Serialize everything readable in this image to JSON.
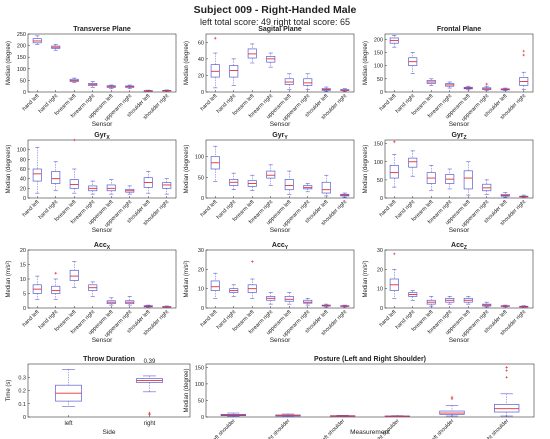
{
  "figure": {
    "title": "Subject 009 - Right-Handed Male",
    "subtitle": "left total score: 49  right total score: 65",
    "colors": {
      "box": "#5b5bd6",
      "median": "#e03030",
      "outlier": "#e03030",
      "axis": "#333333"
    }
  },
  "chart_data": [
    {
      "type": "box",
      "title": "Transverse Plane",
      "xlabel": "Sensor",
      "ylabel": "Median (degree)",
      "ylim": [
        0,
        250
      ],
      "yticks": [
        0,
        50,
        100,
        150,
        200,
        250
      ],
      "categories": [
        "hand left",
        "hand right",
        "forearm left",
        "forearm right",
        "upperarm left",
        "upperarm right",
        "shoulder left",
        "shoulder right"
      ],
      "boxes": [
        {
          "min": 205,
          "q1": 212,
          "median": 220,
          "q3": 230,
          "max": 242,
          "outliers": []
        },
        {
          "min": 180,
          "q1": 188,
          "median": 193,
          "q3": 198,
          "max": 205,
          "outliers": []
        },
        {
          "min": 40,
          "q1": 45,
          "median": 50,
          "q3": 55,
          "max": 60,
          "outliers": []
        },
        {
          "min": 20,
          "q1": 28,
          "median": 33,
          "q3": 37,
          "max": 45,
          "outliers": []
        },
        {
          "min": 15,
          "q1": 20,
          "median": 23,
          "q3": 27,
          "max": 30,
          "outliers": []
        },
        {
          "min": 15,
          "q1": 20,
          "median": 23,
          "q3": 26,
          "max": 30,
          "outliers": []
        },
        {
          "min": 3,
          "q1": 4,
          "median": 5,
          "q3": 6,
          "max": 8,
          "outliers": []
        },
        {
          "min": 4,
          "q1": 5,
          "median": 6,
          "q3": 7,
          "max": 9,
          "outliers": []
        }
      ]
    },
    {
      "type": "box",
      "title": "Sagital Plane",
      "xlabel": "Sensor",
      "ylabel": "Median (degree)",
      "ylim": [
        0,
        70
      ],
      "yticks": [
        0,
        20,
        40,
        60
      ],
      "categories": [
        "hand left",
        "hand right",
        "forearm left",
        "forearm right",
        "upperarm left",
        "upperarm right",
        "shoulder left",
        "shoulder right"
      ],
      "boxes": [
        {
          "min": 5,
          "q1": 18,
          "median": 25,
          "q3": 33,
          "max": 47,
          "outliers": [
            65
          ]
        },
        {
          "min": 8,
          "q1": 18,
          "median": 26,
          "q3": 32,
          "max": 40,
          "outliers": []
        },
        {
          "min": 35,
          "q1": 41,
          "median": 46,
          "q3": 52,
          "max": 58,
          "outliers": []
        },
        {
          "min": 30,
          "q1": 36,
          "median": 40,
          "q3": 43,
          "max": 47,
          "outliers": []
        },
        {
          "min": 3,
          "q1": 9,
          "median": 12,
          "q3": 16,
          "max": 22,
          "outliers": []
        },
        {
          "min": 3,
          "q1": 8,
          "median": 11,
          "q3": 16,
          "max": 22,
          "outliers": []
        },
        {
          "min": 1,
          "q1": 2,
          "median": 3,
          "q3": 4,
          "max": 6,
          "outliers": []
        },
        {
          "min": 1,
          "q1": 2,
          "median": 2,
          "q3": 3,
          "max": 4,
          "outliers": []
        }
      ]
    },
    {
      "type": "box",
      "title": "Frontal Plane",
      "xlabel": "Sensor",
      "ylabel": "Median (degree)",
      "ylim": [
        0,
        220
      ],
      "yticks": [
        0,
        50,
        100,
        150,
        200
      ],
      "categories": [
        "hand left",
        "hand right",
        "forearm left",
        "forearm right",
        "upperarm left",
        "upperarm right",
        "shoulder left",
        "shoulder right"
      ],
      "boxes": [
        {
          "min": 170,
          "q1": 185,
          "median": 195,
          "q3": 205,
          "max": 215,
          "outliers": []
        },
        {
          "min": 70,
          "q1": 100,
          "median": 115,
          "q3": 130,
          "max": 150,
          "outliers": []
        },
        {
          "min": 25,
          "q1": 32,
          "median": 38,
          "q3": 44,
          "max": 50,
          "outliers": []
        },
        {
          "min": 15,
          "q1": 22,
          "median": 27,
          "q3": 32,
          "max": 38,
          "outliers": []
        },
        {
          "min": 8,
          "q1": 12,
          "median": 15,
          "q3": 18,
          "max": 22,
          "outliers": []
        },
        {
          "min": 5,
          "q1": 9,
          "median": 12,
          "q3": 16,
          "max": 22,
          "outliers": [
            30
          ]
        },
        {
          "min": 5,
          "q1": 8,
          "median": 10,
          "q3": 12,
          "max": 15,
          "outliers": []
        },
        {
          "min": 10,
          "q1": 25,
          "median": 40,
          "q3": 55,
          "max": 75,
          "outliers": [
            155,
            140
          ]
        }
      ]
    },
    {
      "type": "box",
      "title": "Gyr",
      "title_sub": "X",
      "xlabel": "Sensor",
      "ylabel": "Median (degree/s)",
      "ylim": [
        0,
        120
      ],
      "yticks": [
        0,
        20,
        40,
        60,
        80,
        100
      ],
      "categories": [
        "hand left",
        "hand right",
        "forearm left",
        "forearm right",
        "upperarm left",
        "upperarm right",
        "shoulder left",
        "shoulder right"
      ],
      "boxes": [
        {
          "min": 10,
          "q1": 35,
          "median": 50,
          "q3": 60,
          "max": 105,
          "outliers": []
        },
        {
          "min": 15,
          "q1": 30,
          "median": 40,
          "q3": 55,
          "max": 75,
          "outliers": []
        },
        {
          "min": 10,
          "q1": 20,
          "median": 28,
          "q3": 38,
          "max": 60,
          "outliers": [
            120
          ]
        },
        {
          "min": 8,
          "q1": 15,
          "median": 20,
          "q3": 25,
          "max": 35,
          "outliers": []
        },
        {
          "min": 8,
          "q1": 15,
          "median": 20,
          "q3": 27,
          "max": 38,
          "outliers": []
        },
        {
          "min": 8,
          "q1": 12,
          "median": 15,
          "q3": 18,
          "max": 25,
          "outliers": []
        },
        {
          "min": 10,
          "q1": 22,
          "median": 32,
          "q3": 42,
          "max": 55,
          "outliers": []
        },
        {
          "min": 8,
          "q1": 20,
          "median": 27,
          "q3": 32,
          "max": 40,
          "outliers": []
        }
      ]
    },
    {
      "type": "box",
      "title": "Gyr",
      "title_sub": "Y",
      "xlabel": "Sensor",
      "ylabel": "Median (degree/s)",
      "ylim": [
        0,
        140
      ],
      "yticks": [
        0,
        50,
        100
      ],
      "categories": [
        "hand left",
        "hand right",
        "forearm left",
        "forearm right",
        "upperarm left",
        "upperarm right",
        "shoulder left",
        "shoulder right"
      ],
      "boxes": [
        {
          "min": 40,
          "q1": 70,
          "median": 85,
          "q3": 100,
          "max": 125,
          "outliers": []
        },
        {
          "min": 20,
          "q1": 30,
          "median": 38,
          "q3": 45,
          "max": 60,
          "outliers": []
        },
        {
          "min": 18,
          "q1": 28,
          "median": 35,
          "q3": 42,
          "max": 55,
          "outliers": []
        },
        {
          "min": 30,
          "q1": 48,
          "median": 55,
          "q3": 65,
          "max": 80,
          "outliers": []
        },
        {
          "min": 8,
          "q1": 20,
          "median": 30,
          "q3": 45,
          "max": 65,
          "outliers": []
        },
        {
          "min": 15,
          "q1": 22,
          "median": 25,
          "q3": 30,
          "max": 35,
          "outliers": []
        },
        {
          "min": 5,
          "q1": 12,
          "median": 20,
          "q3": 38,
          "max": 55,
          "outliers": []
        },
        {
          "min": 2,
          "q1": 5,
          "median": 7,
          "q3": 9,
          "max": 12,
          "outliers": []
        }
      ]
    },
    {
      "type": "box",
      "title": "Gyr",
      "title_sub": "Z",
      "xlabel": "Sensor",
      "ylabel": "Median (degree/s)",
      "ylim": [
        0,
        160
      ],
      "yticks": [
        0,
        50,
        100,
        150
      ],
      "categories": [
        "hand left",
        "hand right",
        "forearm left",
        "forearm right",
        "upperarm left",
        "upperarm right",
        "shoulder left",
        "shoulder right"
      ],
      "boxes": [
        {
          "min": 30,
          "q1": 55,
          "median": 70,
          "q3": 90,
          "max": 120,
          "outliers": [
            155
          ]
        },
        {
          "min": 60,
          "q1": 85,
          "median": 100,
          "q3": 110,
          "max": 130,
          "outliers": []
        },
        {
          "min": 20,
          "q1": 40,
          "median": 55,
          "q3": 70,
          "max": 90,
          "outliers": []
        },
        {
          "min": 25,
          "q1": 40,
          "median": 52,
          "q3": 65,
          "max": 80,
          "outliers": []
        },
        {
          "min": 8,
          "q1": 25,
          "median": 55,
          "q3": 75,
          "max": 100,
          "outliers": []
        },
        {
          "min": 10,
          "q1": 20,
          "median": 28,
          "q3": 38,
          "max": 50,
          "outliers": []
        },
        {
          "min": 2,
          "q1": 5,
          "median": 7,
          "q3": 10,
          "max": 15,
          "outliers": []
        },
        {
          "min": 2,
          "q1": 3,
          "median": 4,
          "q3": 5,
          "max": 8,
          "outliers": []
        }
      ]
    },
    {
      "type": "box",
      "title": "Acc",
      "title_sub": "X",
      "xlabel": "Sensor",
      "ylabel": "Median (m/s²)",
      "ylim": [
        0,
        20
      ],
      "yticks": [
        0,
        5,
        10,
        15,
        20
      ],
      "categories": [
        "hand left",
        "hand right",
        "forearm left",
        "forearm right",
        "upperarm left",
        "upperarm right",
        "shoulder left",
        "shoulder right"
      ],
      "boxes": [
        {
          "min": 3,
          "q1": 5,
          "median": 6.5,
          "q3": 8,
          "max": 11,
          "outliers": []
        },
        {
          "min": 3,
          "q1": 5,
          "median": 6,
          "q3": 7.5,
          "max": 10,
          "outliers": [
            12
          ]
        },
        {
          "min": 7,
          "q1": 9.5,
          "median": 11,
          "q3": 13,
          "max": 16,
          "outliers": []
        },
        {
          "min": 4,
          "q1": 6,
          "median": 7,
          "q3": 8,
          "max": 9,
          "outliers": []
        },
        {
          "min": 1,
          "q1": 1.5,
          "median": 2,
          "q3": 2.5,
          "max": 3.5,
          "outliers": []
        },
        {
          "min": 1,
          "q1": 1.5,
          "median": 2,
          "q3": 2.5,
          "max": 4,
          "outliers": []
        },
        {
          "min": 0.2,
          "q1": 0.4,
          "median": 0.6,
          "q3": 0.8,
          "max": 1,
          "outliers": []
        },
        {
          "min": 0.2,
          "q1": 0.3,
          "median": 0.4,
          "q3": 0.5,
          "max": 0.7,
          "outliers": []
        }
      ]
    },
    {
      "type": "box",
      "title": "Acc",
      "title_sub": "Y",
      "xlabel": "Sensor",
      "ylabel": "Median (m/s²)",
      "ylim": [
        0,
        30
      ],
      "yticks": [
        0,
        10,
        20,
        30
      ],
      "categories": [
        "hand left",
        "hand right",
        "forearm left",
        "forearm right",
        "upperarm left",
        "upperarm right",
        "shoulder left",
        "shoulder right"
      ],
      "boxes": [
        {
          "min": 5,
          "q1": 9,
          "median": 11,
          "q3": 14,
          "max": 18,
          "outliers": []
        },
        {
          "min": 6,
          "q1": 8,
          "median": 9,
          "q3": 10,
          "max": 12,
          "outliers": []
        },
        {
          "min": 5,
          "q1": 8,
          "median": 10,
          "q3": 12,
          "max": 15,
          "outliers": [
            24
          ]
        },
        {
          "min": 2,
          "q1": 4,
          "median": 5,
          "q3": 6,
          "max": 8,
          "outliers": []
        },
        {
          "min": 2,
          "q1": 3.5,
          "median": 4.5,
          "q3": 6,
          "max": 8,
          "outliers": []
        },
        {
          "min": 1.5,
          "q1": 2.5,
          "median": 3,
          "q3": 4,
          "max": 5,
          "outliers": []
        },
        {
          "min": 0.5,
          "q1": 1,
          "median": 1.2,
          "q3": 1.5,
          "max": 2,
          "outliers": []
        },
        {
          "min": 0.5,
          "q1": 0.8,
          "median": 1,
          "q3": 1.2,
          "max": 1.5,
          "outliers": []
        }
      ]
    },
    {
      "type": "box",
      "title": "Acc",
      "title_sub": "Z",
      "xlabel": "Sensor",
      "ylabel": "Median (m/s²)",
      "ylim": [
        0,
        30
      ],
      "yticks": [
        0,
        10,
        20,
        30
      ],
      "categories": [
        "hand left",
        "hand right",
        "forearm left",
        "forearm right",
        "upperarm left",
        "upperarm right",
        "shoulder left",
        "shoulder right"
      ],
      "boxes": [
        {
          "min": 5,
          "q1": 9,
          "median": 12,
          "q3": 15,
          "max": 20,
          "outliers": [
            28
          ]
        },
        {
          "min": 4,
          "q1": 6,
          "median": 7,
          "q3": 8,
          "max": 9,
          "outliers": []
        },
        {
          "min": 1,
          "q1": 2,
          "median": 3,
          "q3": 4,
          "max": 6,
          "outliers": []
        },
        {
          "min": 2,
          "q1": 3,
          "median": 4,
          "q3": 5,
          "max": 6,
          "outliers": []
        },
        {
          "min": 2,
          "q1": 3,
          "median": 4,
          "q3": 5,
          "max": 6,
          "outliers": []
        },
        {
          "min": 0.5,
          "q1": 1,
          "median": 1.5,
          "q3": 2,
          "max": 3,
          "outliers": []
        },
        {
          "min": 0.5,
          "q1": 0.8,
          "median": 1,
          "q3": 1.2,
          "max": 1.5,
          "outliers": []
        },
        {
          "min": 0.3,
          "q1": 0.5,
          "median": 0.7,
          "q3": 0.9,
          "max": 1.2,
          "outliers": []
        }
      ]
    },
    {
      "type": "box",
      "title": "Throw Duration",
      "xlabel": "Side",
      "ylabel": "Time (s)",
      "ylim": [
        0,
        0.4
      ],
      "yticks": [
        0,
        0.1,
        0.2,
        0.3
      ],
      "categories": [
        "left",
        "right"
      ],
      "boxes": [
        {
          "min": 0.08,
          "q1": 0.12,
          "median": 0.18,
          "q3": 0.24,
          "max": 0.36,
          "outliers": []
        },
        {
          "min": 0.19,
          "q1": 0.26,
          "median": 0.275,
          "q3": 0.29,
          "max": 0.31,
          "outliers": [
            0.02,
            0.03
          ]
        }
      ],
      "annotation": "0.39"
    },
    {
      "type": "box",
      "title": "Posture (Left and Right Shoulder)",
      "xlabel": "Measurement",
      "ylabel": "Median (degree)",
      "ylim": [
        0,
        160
      ],
      "yticks": [
        0,
        50,
        100,
        150
      ],
      "categories": [
        "roll left shoulder",
        "roll right shoulder",
        "pitch left shoulder",
        "pitch right shoulder",
        "yaw left shoulder",
        "yaw right shoulder"
      ],
      "boxes": [
        {
          "min": 2,
          "q1": 4,
          "median": 6,
          "q3": 8,
          "max": 12,
          "outliers": []
        },
        {
          "min": 2,
          "q1": 3,
          "median": 5,
          "q3": 6,
          "max": 9,
          "outliers": []
        },
        {
          "min": 1,
          "q1": 2,
          "median": 3,
          "q3": 4,
          "max": 5,
          "outliers": []
        },
        {
          "min": 1,
          "q1": 2,
          "median": 2.5,
          "q3": 3,
          "max": 4,
          "outliers": []
        },
        {
          "min": 3,
          "q1": 8,
          "median": 12,
          "q3": 18,
          "max": 35,
          "outliers": [
            60,
            55
          ]
        },
        {
          "min": 3,
          "q1": 15,
          "median": 25,
          "q3": 38,
          "max": 70,
          "outliers": [
            150,
            140,
            120
          ]
        }
      ]
    }
  ]
}
